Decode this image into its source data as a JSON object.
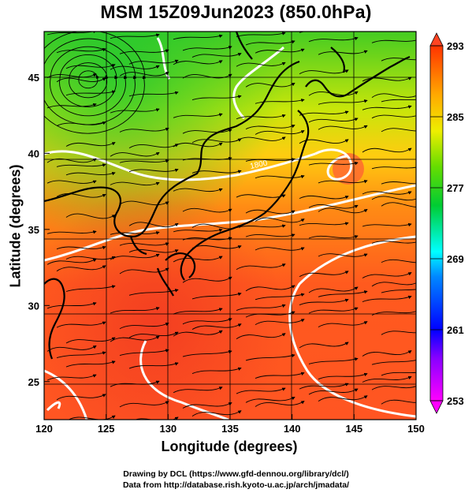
{
  "title": "MSM 15Z09Jun2023 (850.0hPa)",
  "xaxis": {
    "label": "Longitude (degrees)",
    "range": [
      120,
      150
    ],
    "ticks": [
      "120",
      "125",
      "130",
      "135",
      "140",
      "145",
      "150"
    ]
  },
  "yaxis": {
    "label": "Latitude  (degrees)",
    "range": [
      22.5,
      48
    ],
    "ticks": [
      "25",
      "30",
      "35",
      "40",
      "45"
    ]
  },
  "colorbar": {
    "min": 253,
    "max": 293,
    "ticks": [
      "293",
      "285",
      "277",
      "269",
      "261",
      "253"
    ],
    "colors": [
      "#ff00ff",
      "#0000ff",
      "#0099ff",
      "#00ffff",
      "#00cc44",
      "#66dd00",
      "#ccee00",
      "#ffcc00",
      "#ff8800",
      "#ff3300"
    ]
  },
  "contour_labels": {
    "upper": "1800"
  },
  "credits": {
    "line1": "Drawing by DCL (https://www.gfd-dennou.org/library/dcl/)",
    "line2": "Data from http://database.rish.kyoto-u.ac.jp/arch/jmadata/"
  },
  "icons": [
    "colorbar-top-triangle",
    "colorbar-bottom-triangle",
    "streamline-arrow"
  ]
}
